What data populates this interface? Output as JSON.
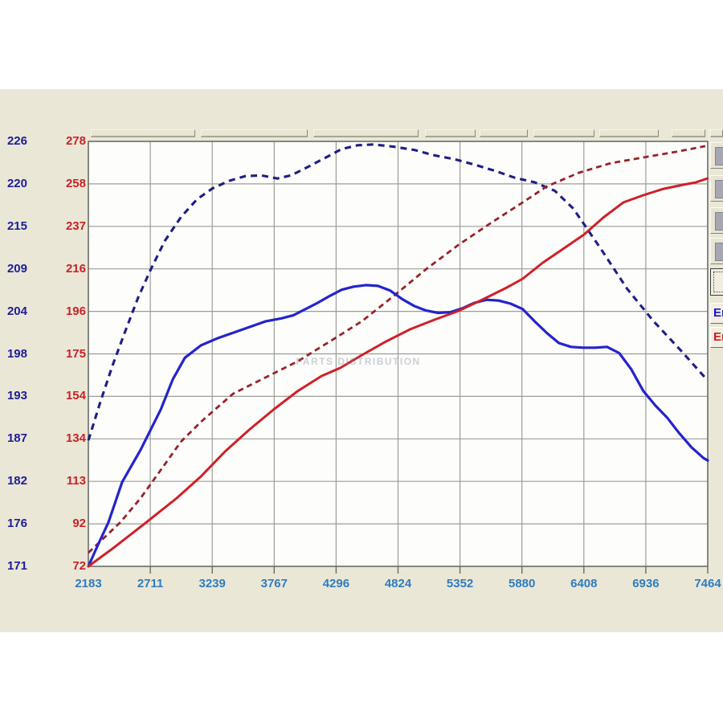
{
  "colors": {
    "photo_band": "#eae7d6",
    "plot_background": "#fdfdfb",
    "grid": "#9d9d97",
    "plot_border": "#6b6b66",
    "navy_dashed": "#1e1e86",
    "blue_solid": "#2424cc",
    "red_solid": "#cf2028",
    "dark_red_dashed": "#97232a"
  },
  "chart_data": {
    "type": "line",
    "title": "",
    "grid": true,
    "watermark": "PARTS DISTRIBUTION",
    "x_axis": {
      "min": 2183,
      "max": 7464,
      "color": "#2e7cc0",
      "ticks": [
        "2183",
        "2711",
        "3239",
        "3767",
        "4296",
        "4824",
        "5352",
        "5880",
        "6408",
        "6936",
        "7464"
      ]
    },
    "y_axis_blue": {
      "min": 171,
      "max": 226,
      "color": "#1c1c99",
      "ticks": [
        "226",
        "220",
        "215",
        "209",
        "204",
        "198",
        "193",
        "187",
        "182",
        "176",
        "171"
      ]
    },
    "y_axis_red": {
      "min": 72,
      "max": 278,
      "color": "#cc2127",
      "ticks": [
        "278",
        "258",
        "237",
        "216",
        "196",
        "175",
        "154",
        "134",
        "113",
        "92",
        "72"
      ]
    },
    "series": [
      {
        "name": "dashed-navy-curve",
        "axis": "blue",
        "color": "#1e1e86",
        "dash": "8 6",
        "width": 3.1,
        "points": [
          [
            2183,
            187.3
          ],
          [
            2286,
            192.3
          ],
          [
            2389,
            197.0
          ],
          [
            2492,
            201.2
          ],
          [
            2608,
            205.8
          ],
          [
            2711,
            209.3
          ],
          [
            2834,
            213.1
          ],
          [
            2972,
            216.2
          ],
          [
            3109,
            218.5
          ],
          [
            3239,
            219.9
          ],
          [
            3383,
            220.9
          ],
          [
            3520,
            221.5
          ],
          [
            3657,
            221.6
          ],
          [
            3795,
            221.2
          ],
          [
            3911,
            221.6
          ],
          [
            4069,
            222.8
          ],
          [
            4206,
            223.9
          ],
          [
            4343,
            225.0
          ],
          [
            4480,
            225.5
          ],
          [
            4618,
            225.6
          ],
          [
            4789,
            225.3
          ],
          [
            4961,
            224.9
          ],
          [
            5132,
            224.2
          ],
          [
            5303,
            223.7
          ],
          [
            5475,
            223.0
          ],
          [
            5646,
            222.2
          ],
          [
            5818,
            221.3
          ],
          [
            5989,
            220.7
          ],
          [
            6161,
            219.6
          ],
          [
            6318,
            217.3
          ],
          [
            6552,
            212.1
          ],
          [
            6778,
            206.9
          ],
          [
            7004,
            202.7
          ],
          [
            7237,
            198.9
          ],
          [
            7443,
            195.4
          ]
        ]
      },
      {
        "name": "dashed-dark-red-curve",
        "axis": "red",
        "color": "#97232a",
        "dash": "7 5",
        "width": 2.8,
        "points": [
          [
            2183,
            78.6
          ],
          [
            2320,
            86.0
          ],
          [
            2457,
            93.4
          ],
          [
            2629,
            105.1
          ],
          [
            2800,
            118.7
          ],
          [
            2972,
            132.4
          ],
          [
            3143,
            142.1
          ],
          [
            3417,
            155.7
          ],
          [
            3692,
            163.5
          ],
          [
            3966,
            171.3
          ],
          [
            4241,
            181.0
          ],
          [
            4515,
            190.8
          ],
          [
            4789,
            203.2
          ],
          [
            5063,
            216.1
          ],
          [
            5338,
            227.8
          ],
          [
            5612,
            238.3
          ],
          [
            5886,
            248.4
          ],
          [
            6092,
            256.2
          ],
          [
            6366,
            262.8
          ],
          [
            6640,
            267.5
          ],
          [
            6915,
            270.2
          ],
          [
            7189,
            272.9
          ],
          [
            7443,
            275.7
          ]
        ]
      },
      {
        "name": "solid-blue-curve",
        "axis": "blue",
        "color": "#2424cc",
        "dash": "",
        "width": 3.2,
        "points": [
          [
            2183,
            171.0
          ],
          [
            2265,
            173.8
          ],
          [
            2354,
            176.7
          ],
          [
            2471,
            181.9
          ],
          [
            2629,
            186.1
          ],
          [
            2800,
            191.3
          ],
          [
            2903,
            195.2
          ],
          [
            3006,
            198.0
          ],
          [
            3143,
            199.6
          ],
          [
            3280,
            200.5
          ],
          [
            3486,
            201.6
          ],
          [
            3692,
            202.7
          ],
          [
            3829,
            203.1
          ],
          [
            3932,
            203.5
          ],
          [
            4035,
            204.3
          ],
          [
            4138,
            205.1
          ],
          [
            4241,
            206.0
          ],
          [
            4343,
            206.8
          ],
          [
            4446,
            207.2
          ],
          [
            4549,
            207.4
          ],
          [
            4652,
            207.3
          ],
          [
            4755,
            206.7
          ],
          [
            4858,
            205.6
          ],
          [
            4961,
            204.7
          ],
          [
            5063,
            204.1
          ],
          [
            5166,
            203.8
          ],
          [
            5269,
            203.9
          ],
          [
            5372,
            204.4
          ],
          [
            5475,
            205.1
          ],
          [
            5578,
            205.5
          ],
          [
            5680,
            205.4
          ],
          [
            5783,
            205.0
          ],
          [
            5886,
            204.3
          ],
          [
            5989,
            202.7
          ],
          [
            6092,
            201.2
          ],
          [
            6195,
            199.9
          ],
          [
            6298,
            199.4
          ],
          [
            6400,
            199.3
          ],
          [
            6503,
            199.3
          ],
          [
            6606,
            199.4
          ],
          [
            6709,
            198.6
          ],
          [
            6812,
            196.5
          ],
          [
            6915,
            193.7
          ],
          [
            7018,
            191.8
          ],
          [
            7120,
            190.2
          ],
          [
            7223,
            188.2
          ],
          [
            7326,
            186.4
          ],
          [
            7429,
            185.0
          ],
          [
            7464,
            184.7
          ]
        ]
      },
      {
        "name": "solid-red-curve",
        "axis": "red",
        "color": "#cf2028",
        "dash": "",
        "width": 3.0,
        "points": [
          [
            2183,
            72.0
          ],
          [
            2389,
            80.6
          ],
          [
            2663,
            92.7
          ],
          [
            2937,
            105.1
          ],
          [
            3143,
            115.6
          ],
          [
            3349,
            127.7
          ],
          [
            3554,
            138.2
          ],
          [
            3760,
            147.9
          ],
          [
            3966,
            156.9
          ],
          [
            4172,
            164.3
          ],
          [
            4330,
            168.2
          ],
          [
            4515,
            174.4
          ],
          [
            4721,
            181.0
          ],
          [
            4927,
            186.9
          ],
          [
            5132,
            191.5
          ],
          [
            5338,
            195.8
          ],
          [
            5543,
            201.3
          ],
          [
            5749,
            207.1
          ],
          [
            5886,
            211.4
          ],
          [
            6058,
            219.2
          ],
          [
            6229,
            225.8
          ],
          [
            6408,
            232.8
          ],
          [
            6572,
            241.0
          ],
          [
            6744,
            248.4
          ],
          [
            6915,
            251.9
          ],
          [
            7086,
            255.0
          ],
          [
            7258,
            257.0
          ],
          [
            7361,
            258.1
          ],
          [
            7464,
            260.1
          ]
        ]
      }
    ]
  },
  "right_panel": {
    "icon_buttons": [
      {
        "name": "panel-icon-button-1"
      },
      {
        "name": "panel-icon-button-2"
      },
      {
        "name": "panel-icon-button-3"
      },
      {
        "name": "panel-icon-button-4"
      }
    ],
    "focused_button": {
      "name": "panel-focused-button"
    },
    "legend": [
      {
        "label": "En",
        "color": "#1717c4"
      },
      {
        "label": "En",
        "color": "#cc1b22"
      }
    ]
  }
}
